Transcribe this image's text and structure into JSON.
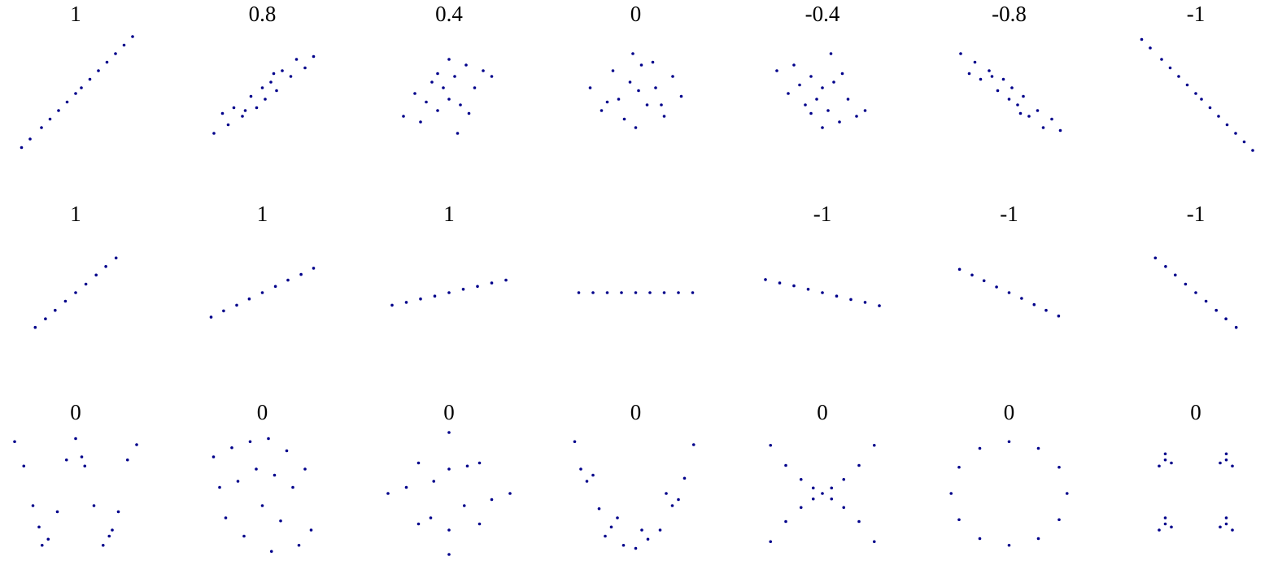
{
  "chart_data": [
    {
      "type": "scatter",
      "title": "1",
      "color": "#00008b",
      "x": [
        -0.95,
        -0.8,
        -0.6,
        -0.45,
        -0.3,
        -0.15,
        0,
        0.1,
        0.25,
        0.4,
        0.55,
        0.7,
        0.85,
        1
      ],
      "y": [
        -0.95,
        -0.8,
        -0.6,
        -0.45,
        -0.3,
        -0.15,
        0,
        0.1,
        0.25,
        0.4,
        0.55,
        0.7,
        0.85,
        1
      ]
    },
    {
      "type": "scatter",
      "title": "0.8",
      "color": "#00008b",
      "x": [
        -0.85,
        -0.6,
        -0.5,
        -0.35,
        -0.2,
        -0.1,
        0,
        0.05,
        0.15,
        0.25,
        0.35,
        0.5,
        0.6,
        0.75,
        -0.3,
        0.2,
        0.9,
        -0.7
      ],
      "y": [
        -0.7,
        -0.55,
        -0.25,
        -0.4,
        -0.05,
        -0.25,
        0.1,
        -0.1,
        0.2,
        0.05,
        0.4,
        0.3,
        0.6,
        0.45,
        -0.3,
        0.35,
        0.65,
        -0.35
      ]
    },
    {
      "type": "scatter",
      "title": "0.4",
      "color": "#00008b",
      "x": [
        -0.8,
        -0.6,
        -0.5,
        -0.3,
        -0.2,
        -0.1,
        0,
        0.1,
        0.2,
        0.3,
        0.45,
        0.6,
        0.75,
        -0.4,
        0.35,
        0,
        0.15,
        -0.2
      ],
      "y": [
        -0.4,
        0,
        -0.5,
        0.2,
        -0.3,
        0.1,
        -0.1,
        0.3,
        -0.2,
        0.5,
        0.1,
        0.4,
        0.3,
        -0.15,
        -0.35,
        0.6,
        -0.7,
        0.35
      ]
    },
    {
      "type": "scatter",
      "title": "0",
      "color": "#00008b",
      "x": [
        -0.8,
        -0.6,
        -0.4,
        -0.3,
        -0.1,
        0,
        0.1,
        0.2,
        0.35,
        0.5,
        0.65,
        0.8,
        -0.5,
        0.3,
        -0.2,
        0.05,
        0.45,
        -0.05
      ],
      "y": [
        0.1,
        -0.3,
        0.4,
        -0.1,
        0.2,
        -0.6,
        0.5,
        -0.2,
        0.1,
        -0.4,
        0.3,
        -0.05,
        -0.15,
        0.55,
        -0.45,
        0.05,
        -0.2,
        0.7
      ]
    },
    {
      "type": "scatter",
      "title": "-0.4",
      "color": "#00008b",
      "x": [
        -0.8,
        -0.6,
        -0.5,
        -0.3,
        -0.2,
        -0.1,
        0,
        0.1,
        0.2,
        0.3,
        0.45,
        0.6,
        0.75,
        -0.4,
        0.35,
        0,
        0.15,
        -0.2
      ],
      "y": [
        0.4,
        0,
        0.5,
        -0.2,
        0.3,
        -0.1,
        0.1,
        -0.3,
        0.2,
        -0.5,
        -0.1,
        -0.4,
        -0.3,
        0.15,
        0.35,
        -0.6,
        0.7,
        -0.35
      ]
    },
    {
      "type": "scatter",
      "title": "-0.8",
      "color": "#00008b",
      "x": [
        -0.85,
        -0.6,
        -0.5,
        -0.35,
        -0.2,
        -0.1,
        0,
        0.05,
        0.15,
        0.25,
        0.35,
        0.5,
        0.6,
        0.75,
        -0.3,
        0.2,
        0.9,
        -0.7
      ],
      "y": [
        0.7,
        0.55,
        0.25,
        0.4,
        0.05,
        0.25,
        -0.1,
        0.1,
        -0.2,
        -0.05,
        -0.4,
        -0.3,
        -0.6,
        -0.45,
        0.3,
        -0.35,
        -0.65,
        0.35
      ]
    },
    {
      "type": "scatter",
      "title": "-1",
      "color": "#00008b",
      "x": [
        -0.95,
        -0.8,
        -0.6,
        -0.45,
        -0.3,
        -0.15,
        0,
        0.1,
        0.25,
        0.4,
        0.55,
        0.7,
        0.85,
        1
      ],
      "y": [
        0.95,
        0.8,
        0.6,
        0.45,
        0.3,
        0.15,
        0,
        -0.1,
        -0.25,
        -0.4,
        -0.55,
        -0.7,
        -0.85,
        -1
      ]
    },
    {
      "type": "scatter",
      "title": "1",
      "color": "#00008b",
      "x": [
        -0.71,
        -0.53,
        -0.36,
        -0.18,
        0,
        0.18,
        0.36,
        0.53,
        0.71
      ],
      "y": [
        -0.61,
        -0.46,
        -0.31,
        -0.15,
        0,
        0.15,
        0.31,
        0.46,
        0.61
      ]
    },
    {
      "type": "scatter",
      "title": "1",
      "color": "#00008b",
      "x": [
        -0.9,
        -0.68,
        -0.45,
        -0.23,
        0,
        0.23,
        0.45,
        0.68,
        0.9
      ],
      "y": [
        -0.43,
        -0.32,
        -0.22,
        -0.11,
        0,
        0.11,
        0.22,
        0.32,
        0.43
      ]
    },
    {
      "type": "scatter",
      "title": "1",
      "color": "#00008b",
      "x": [
        -1,
        -0.75,
        -0.5,
        -0.25,
        0,
        0.25,
        0.5,
        0.75,
        1
      ],
      "y": [
        -0.22,
        -0.17,
        -0.11,
        -0.06,
        0,
        0.06,
        0.11,
        0.17,
        0.22
      ]
    },
    {
      "type": "scatter",
      "color": "#00008b",
      "x": [
        -1,
        -0.75,
        -0.5,
        -0.25,
        0,
        0.25,
        0.5,
        0.75,
        1
      ],
      "y": [
        0,
        0,
        0,
        0,
        0,
        0,
        0,
        0,
        0
      ]
    },
    {
      "type": "scatter",
      "title": "-1",
      "color": "#00008b",
      "x": [
        -1,
        -0.75,
        -0.5,
        -0.25,
        0,
        0.25,
        0.5,
        0.75,
        1
      ],
      "y": [
        0.23,
        0.17,
        0.12,
        0.06,
        0,
        -0.06,
        -0.12,
        -0.17,
        -0.23
      ]
    },
    {
      "type": "scatter",
      "title": "-1",
      "color": "#00008b",
      "x": [
        -0.87,
        -0.65,
        -0.44,
        -0.22,
        0,
        0.22,
        0.44,
        0.65,
        0.87
      ],
      "y": [
        0.41,
        0.31,
        0.21,
        0.1,
        0,
        -0.1,
        -0.21,
        -0.31,
        -0.41
      ]
    },
    {
      "type": "scatter",
      "title": "-1",
      "color": "#00008b",
      "x": [
        -0.71,
        -0.53,
        -0.36,
        -0.18,
        0,
        0.18,
        0.36,
        0.53,
        0.71
      ],
      "y": [
        0.61,
        0.46,
        0.31,
        0.15,
        0,
        -0.15,
        -0.31,
        -0.46,
        -0.61
      ]
    },
    {
      "type": "scatter",
      "title": "0",
      "color": "#00008b",
      "x": [
        -1,
        -0.85,
        -0.7,
        -0.55,
        -0.45,
        -0.3,
        -0.15,
        0,
        0.15,
        0.3,
        0.45,
        0.55,
        0.7,
        0.85,
        1,
        -0.6,
        0.1,
        0.6
      ],
      "y": [
        0.85,
        0.45,
        -0.2,
        -0.85,
        -0.75,
        -0.3,
        0.55,
        0.9,
        0.45,
        -0.2,
        -0.85,
        -0.7,
        -0.3,
        0.55,
        0.8,
        -0.55,
        0.6,
        -0.6
      ]
    },
    {
      "type": "scatter",
      "title": "0",
      "color": "#00008b",
      "x": [
        -0.8,
        -0.5,
        -0.2,
        0.1,
        0.4,
        0.7,
        -0.7,
        -0.4,
        -0.1,
        0.2,
        0.5,
        0.8,
        -0.6,
        -0.3,
        0,
        0.3,
        0.6,
        0.15
      ],
      "y": [
        0.6,
        0.75,
        0.85,
        0.9,
        0.7,
        0.4,
        0.1,
        0.2,
        0.4,
        0.3,
        0.1,
        -0.6,
        -0.4,
        -0.7,
        -0.2,
        -0.45,
        -0.85,
        -0.95
      ]
    },
    {
      "type": "scatter",
      "title": "0",
      "color": "#00008b",
      "x": [
        -1,
        -0.5,
        0,
        0.5,
        1,
        0,
        -0.5,
        0.5,
        -0.25,
        0.25,
        0,
        -0.7,
        0.7,
        -0.3,
        0.3,
        0
      ],
      "y": [
        0,
        0.5,
        1,
        0.5,
        0,
        -1,
        -0.5,
        -0.5,
        0.2,
        -0.2,
        0.4,
        0.1,
        -0.1,
        -0.4,
        0.45,
        -0.6
      ]
    },
    {
      "type": "scatter",
      "title": "0",
      "color": "#00008b",
      "x": [
        -1,
        -0.9,
        -0.8,
        -0.6,
        -0.4,
        -0.2,
        0,
        0.2,
        0.4,
        0.6,
        0.8,
        0.95,
        -0.7,
        -0.3,
        0.1,
        0.5,
        0.7,
        -0.5
      ],
      "y": [
        0.85,
        0.4,
        0.2,
        -0.25,
        -0.55,
        -0.85,
        -0.9,
        -0.75,
        -0.6,
        -0.2,
        0.25,
        0.8,
        0.3,
        -0.4,
        -0.6,
        0,
        -0.1,
        -0.7
      ]
    },
    {
      "type": "scatter",
      "title": "0",
      "color": "#00008b",
      "x": [
        -0.85,
        -0.6,
        -0.35,
        -0.15,
        0,
        0.15,
        0.35,
        0.6,
        0.85,
        -0.85,
        -0.6,
        -0.35,
        -0.15,
        0.15,
        0.35,
        0.6,
        0.85
      ],
      "y": [
        -0.79,
        -0.46,
        -0.23,
        -0.09,
        0,
        0.09,
        0.23,
        0.46,
        0.79,
        0.79,
        0.46,
        0.23,
        0.09,
        -0.09,
        -0.23,
        -0.46,
        -0.79
      ]
    },
    {
      "type": "scatter",
      "title": "0",
      "color": "#00008b",
      "x": [
        0.95,
        0.82,
        0.48,
        0,
        -0.48,
        -0.82,
        -0.95,
        -0.82,
        -0.48,
        0,
        0.48,
        0.82
      ],
      "y": [
        0,
        0.43,
        0.74,
        0.85,
        0.74,
        0.43,
        0,
        -0.43,
        -0.74,
        -0.85,
        -0.74,
        -0.43
      ]
    },
    {
      "type": "scatter",
      "title": "0",
      "color": "#00008b",
      "x": [
        -0.5,
        -0.6,
        -0.4,
        -0.5,
        0.5,
        0.6,
        0.4,
        0.5,
        -0.5,
        -0.6,
        -0.4,
        -0.5,
        0.5,
        0.6,
        0.4,
        0.5
      ],
      "y": [
        0.55,
        0.45,
        0.5,
        0.65,
        0.55,
        0.45,
        0.5,
        0.65,
        -0.5,
        -0.6,
        -0.55,
        -0.4,
        -0.5,
        -0.6,
        -0.55,
        -0.4
      ]
    }
  ]
}
